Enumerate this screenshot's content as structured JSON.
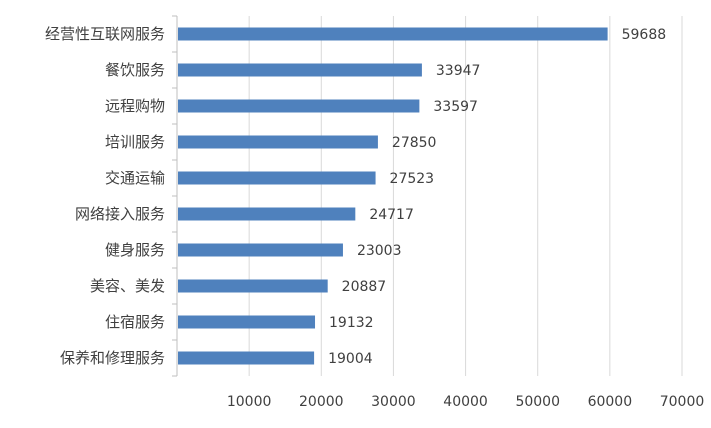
{
  "chart_data": {
    "type": "bar",
    "orientation": "horizontal",
    "categories": [
      "经营性互联网服务",
      "餐饮服务",
      "远程购物",
      "培训服务",
      "交通运输",
      "网络接入服务",
      "健身服务",
      "美容、美发",
      "住宿服务",
      "保养和修理服务"
    ],
    "values": [
      59688,
      33947,
      33597,
      27850,
      27523,
      24717,
      23003,
      20887,
      19132,
      19004
    ],
    "value_labels": [
      "59688",
      "33947",
      "33597",
      "27850",
      "27523",
      "24717",
      "23003",
      "20887",
      "19132",
      "19004"
    ],
    "x_ticks": [
      "10000",
      "20000",
      "30000",
      "40000",
      "50000",
      "60000",
      "70000"
    ],
    "x_tick_values": [
      10000,
      20000,
      30000,
      40000,
      50000,
      60000,
      70000
    ],
    "xlim": [
      0,
      70000
    ],
    "title": "",
    "xlabel": "",
    "ylabel": "",
    "grid": "vertical",
    "legend": "none",
    "colors": {
      "bar": "#4f81bd",
      "grid": "#d9d9d9",
      "axis": "#bfbfbf",
      "text": "#404040"
    }
  }
}
